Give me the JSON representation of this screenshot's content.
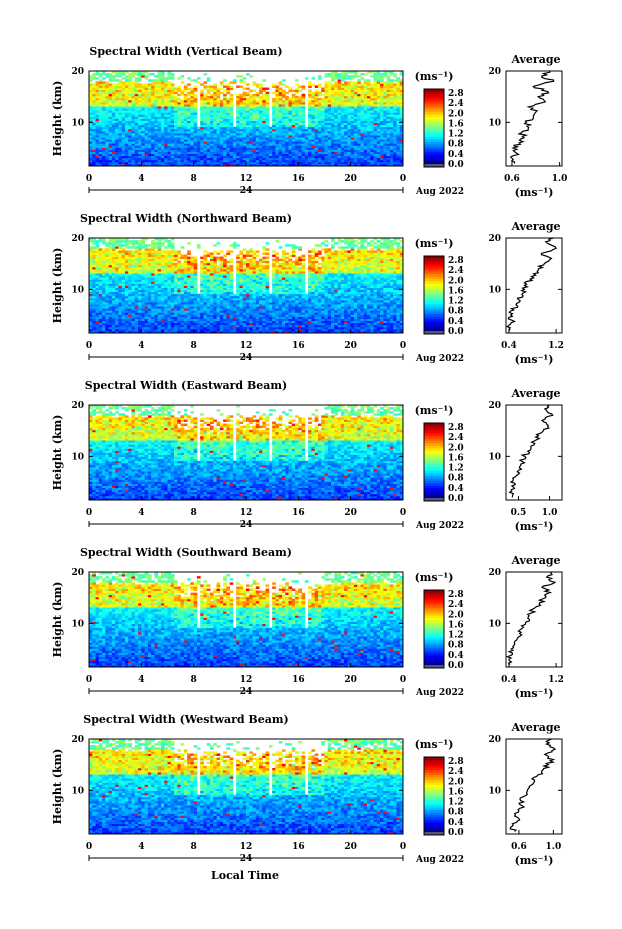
{
  "figure": {
    "x_axis_label": "Local Time",
    "average_title": "Average",
    "date_label": "Aug 2022",
    "day_label": "24",
    "unit_label": "(ms⁻¹)",
    "y_axis_label": "Height (km)",
    "colorbar_ticks": [
      "0.0",
      "0.4",
      "0.8",
      "1.2",
      "1.6",
      "2.0",
      "2.4",
      "2.8"
    ]
  },
  "chart_data": [
    {
      "type": "heatmap",
      "title": "Spectral Width (Vertical Beam)",
      "xlabel": "Local Time",
      "ylabel": "Height (km)",
      "x_ticks": [
        "0",
        "4",
        "8",
        "12",
        "16",
        "20",
        "0"
      ],
      "y_ticks": [
        "10",
        "20"
      ],
      "xlim": [
        0,
        24
      ],
      "ylim": [
        1.5,
        20
      ],
      "clim": [
        0,
        3.0
      ],
      "average": {
        "title": "Average",
        "xlabel": "(ms⁻¹)",
        "x_ticks": [
          "0.6",
          "1.0"
        ],
        "xlim": [
          0.55,
          1.02
        ],
        "height": [
          2,
          3,
          4,
          5,
          6,
          7,
          8,
          9,
          10,
          11,
          12,
          13,
          14,
          15,
          16,
          17,
          18,
          19,
          20
        ],
        "values": [
          0.62,
          0.6,
          0.64,
          0.61,
          0.66,
          0.7,
          0.68,
          0.74,
          0.72,
          0.78,
          0.8,
          0.74,
          0.88,
          0.82,
          0.9,
          0.78,
          0.95,
          0.85,
          0.92
        ]
      }
    },
    {
      "type": "heatmap",
      "title": "Spectral Width (Northward Beam)",
      "xlabel": "Local Time",
      "ylabel": "Height (km)",
      "x_ticks": [
        "0",
        "4",
        "8",
        "12",
        "16",
        "20",
        "0"
      ],
      "y_ticks": [
        "10",
        "20"
      ],
      "xlim": [
        0,
        24
      ],
      "ylim": [
        1.5,
        20
      ],
      "clim": [
        0,
        3.0
      ],
      "average": {
        "title": "Average",
        "xlabel": "(ms⁻¹)",
        "x_ticks": [
          "0.4",
          "1.2"
        ],
        "xlim": [
          0.35,
          1.3
        ],
        "height": [
          2,
          3,
          4,
          5,
          6,
          7,
          8,
          9,
          10,
          11,
          12,
          13,
          14,
          15,
          16,
          17,
          18,
          19,
          20
        ],
        "values": [
          0.42,
          0.4,
          0.45,
          0.43,
          0.48,
          0.52,
          0.56,
          0.62,
          0.66,
          0.7,
          0.76,
          0.82,
          0.9,
          1.0,
          1.12,
          0.95,
          1.2,
          1.05,
          1.15
        ]
      }
    },
    {
      "type": "heatmap",
      "title": "Spectral Width (Eastward Beam)",
      "xlabel": "Local Time",
      "ylabel": "Height (km)",
      "x_ticks": [
        "0",
        "4",
        "8",
        "12",
        "16",
        "20",
        "0"
      ],
      "y_ticks": [
        "10",
        "20"
      ],
      "xlim": [
        0,
        24
      ],
      "ylim": [
        1.5,
        20
      ],
      "clim": [
        0,
        3.0
      ],
      "average": {
        "title": "Average",
        "xlabel": "(ms⁻¹)",
        "x_ticks": [
          "0.5",
          "1.0"
        ],
        "xlim": [
          0.3,
          1.2
        ],
        "height": [
          2,
          3,
          4,
          5,
          6,
          7,
          8,
          9,
          10,
          11,
          12,
          13,
          14,
          15,
          16,
          17,
          18,
          19,
          20
        ],
        "values": [
          0.4,
          0.36,
          0.42,
          0.38,
          0.45,
          0.48,
          0.52,
          0.56,
          0.6,
          0.65,
          0.7,
          0.76,
          0.82,
          0.9,
          0.98,
          0.88,
          1.05,
          0.95,
          1.0
        ]
      }
    },
    {
      "type": "heatmap",
      "title": "Spectral Width (Southward Beam)",
      "xlabel": "Local Time",
      "ylabel": "Height (km)",
      "x_ticks": [
        "0",
        "4",
        "8",
        "12",
        "16",
        "20",
        "0"
      ],
      "y_ticks": [
        "10",
        "20"
      ],
      "xlim": [
        0,
        24
      ],
      "ylim": [
        1.5,
        20
      ],
      "clim": [
        0,
        3.0
      ],
      "average": {
        "title": "Average",
        "xlabel": "(ms⁻¹)",
        "x_ticks": [
          "0.4",
          "1.2"
        ],
        "xlim": [
          0.35,
          1.3
        ],
        "height": [
          2,
          3,
          4,
          5,
          6,
          7,
          8,
          9,
          10,
          11,
          12,
          13,
          14,
          15,
          16,
          17,
          18,
          19,
          20
        ],
        "values": [
          0.42,
          0.4,
          0.46,
          0.44,
          0.5,
          0.54,
          0.58,
          0.62,
          0.68,
          0.72,
          0.78,
          0.84,
          0.92,
          1.02,
          1.1,
          0.96,
          1.18,
          1.04,
          1.12
        ]
      }
    },
    {
      "type": "heatmap",
      "title": "Spectral Width (Westward Beam)",
      "xlabel": "Local Time",
      "ylabel": "Height (km)",
      "x_ticks": [
        "0",
        "4",
        "8",
        "12",
        "16",
        "20",
        "0"
      ],
      "y_ticks": [
        "10",
        "20"
      ],
      "xlim": [
        0,
        24
      ],
      "ylim": [
        1.5,
        20
      ],
      "clim": [
        0,
        3.0
      ],
      "average": {
        "title": "Average",
        "xlabel": "(ms⁻¹)",
        "x_ticks": [
          "0.6",
          "1.0"
        ],
        "xlim": [
          0.45,
          1.1
        ],
        "height": [
          2,
          3,
          4,
          5,
          6,
          7,
          8,
          9,
          10,
          11,
          12,
          13,
          14,
          15,
          16,
          17,
          18,
          19,
          20
        ],
        "values": [
          0.55,
          0.52,
          0.58,
          0.55,
          0.6,
          0.64,
          0.62,
          0.68,
          0.7,
          0.74,
          0.78,
          0.82,
          0.88,
          0.94,
          1.0,
          0.9,
          1.02,
          0.92,
          0.98
        ]
      }
    }
  ]
}
